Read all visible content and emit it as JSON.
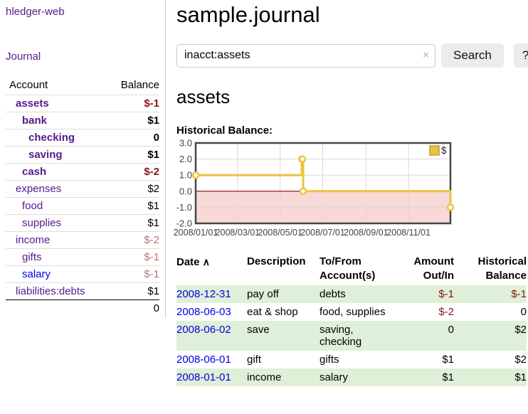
{
  "app": {
    "title": "hledger-web"
  },
  "sidebar": {
    "journal_link": "Journal",
    "accounts_table": {
      "headers": {
        "account": "Account",
        "balance": "Balance"
      },
      "rows": [
        {
          "name": "assets",
          "depth": 1,
          "bold": true,
          "balance": "$-1",
          "negative": "strong"
        },
        {
          "name": "bank",
          "depth": 2,
          "bold": true,
          "balance": "$1"
        },
        {
          "name": "checking",
          "depth": 3,
          "bold": true,
          "balance": "0"
        },
        {
          "name": "saving",
          "depth": 3,
          "bold": true,
          "balance": "$1"
        },
        {
          "name": "cash",
          "depth": 2,
          "bold": true,
          "balance": "$-2",
          "negative": "strong"
        },
        {
          "name": "expenses",
          "depth": 1,
          "bold": false,
          "balance": "$2"
        },
        {
          "name": "food",
          "depth": 2,
          "bold": false,
          "balance": "$1"
        },
        {
          "name": "supplies",
          "depth": 2,
          "bold": false,
          "balance": "$1"
        },
        {
          "name": "income",
          "depth": 1,
          "bold": false,
          "balance": "$-2",
          "negative": "soft"
        },
        {
          "name": "gifts",
          "depth": 2,
          "bold": false,
          "balance": "$-1",
          "negative": "soft"
        },
        {
          "name": "salary",
          "depth": 2,
          "bold": false,
          "balance": "$-1",
          "negative": "soft",
          "link_color": "blue"
        },
        {
          "name": "liabilities:debts",
          "depth": 1,
          "bold": false,
          "balance": "$1"
        }
      ],
      "total": "0"
    }
  },
  "header": {
    "title": "sample.journal"
  },
  "search": {
    "value": "inacct:assets",
    "clear_icon": "×",
    "button_label": "Search",
    "help_label": "?"
  },
  "account_page": {
    "heading": "assets",
    "chart_label": "Historical Balance:"
  },
  "chart_data": {
    "type": "line",
    "title": "Historical Balance",
    "series": [
      {
        "name": "$",
        "color": "#EDC240",
        "step": true,
        "points": [
          {
            "x": "2008-01-01",
            "y": 1
          },
          {
            "x": "2008-06-01",
            "y": 2
          },
          {
            "x": "2008-06-02",
            "y": 2
          },
          {
            "x": "2008-06-03",
            "y": 0
          },
          {
            "x": "2008-12-31",
            "y": -1
          }
        ]
      }
    ],
    "x_start": "2008-01-01",
    "x_end": "2008-12-31",
    "x_ticks": [
      "2008/01/01",
      "2008/03/01",
      "2008/05/01",
      "2008/07/01",
      "2008/09/01",
      "2008/11/01"
    ],
    "y_ticks": [
      "3.0",
      "2.0",
      "1.0",
      "0.0",
      "-1.0",
      "-2.0"
    ],
    "ylim": [
      -2,
      3
    ],
    "grid": true,
    "legend": {
      "position": "top-right",
      "label": "$"
    },
    "negative_region_color": "#f9d8d8",
    "zero_line_color": "#8b0000",
    "grid_color": "#d9d9d9",
    "border_color": "#474747"
  },
  "register": {
    "headers": {
      "date": "Date",
      "sort_icon": "∧",
      "description": "Description",
      "accounts": "To/From Account(s)",
      "amount": "Amount Out/In",
      "balance": "Historical Balance"
    },
    "rows": [
      {
        "date": "2008-12-31",
        "description": "pay off",
        "accounts": "debts",
        "amount": "$-1",
        "amount_negative": true,
        "balance": "$-1",
        "balance_negative": true
      },
      {
        "date": "2008-06-03",
        "description": "eat & shop",
        "accounts": "food, supplies",
        "amount": "$-2",
        "amount_negative": true,
        "balance": "0",
        "balance_negative": false
      },
      {
        "date": "2008-06-02",
        "description": "save",
        "accounts": "saving, checking",
        "amount": "0",
        "amount_negative": false,
        "balance": "$2",
        "balance_negative": false
      },
      {
        "date": "2008-06-01",
        "description": "gift",
        "accounts": "gifts",
        "amount": "$1",
        "amount_negative": false,
        "balance": "$2",
        "balance_negative": false
      },
      {
        "date": "2008-01-01",
        "description": "income",
        "accounts": "salary",
        "amount": "$1",
        "amount_negative": false,
        "balance": "$1",
        "balance_negative": false
      }
    ]
  }
}
